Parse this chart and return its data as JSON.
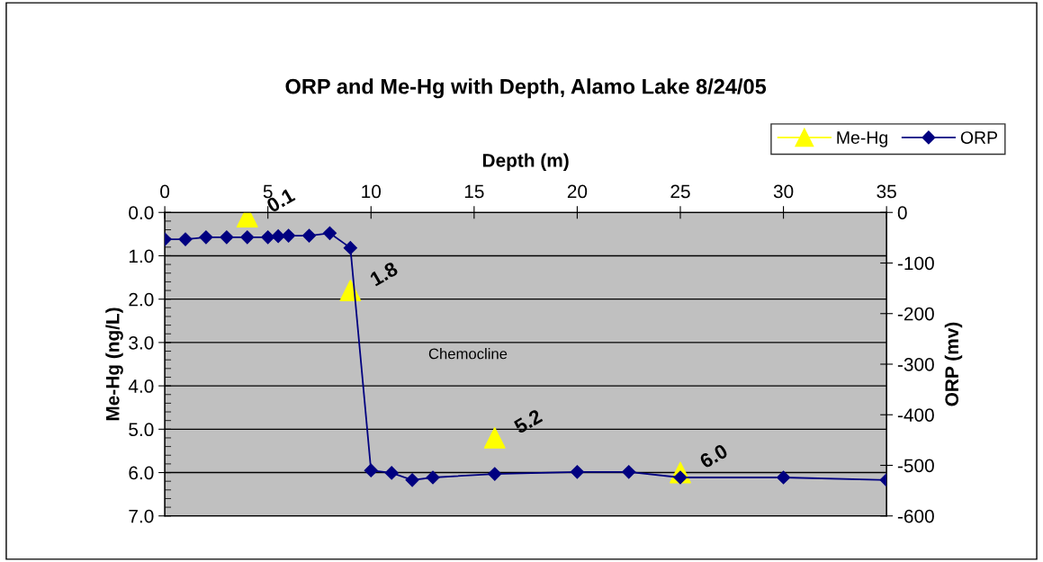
{
  "chart_data": {
    "type": "scatter",
    "title": "ORP and Me-Hg with Depth, Alamo Lake 8/24/05",
    "xlabel": "Depth (m)",
    "ylabel": "Me-Hg (ng/L)",
    "y2label": "ORP (mv)",
    "xlim": [
      0,
      35
    ],
    "xticks": [
      0,
      5,
      10,
      15,
      20,
      25,
      30,
      35
    ],
    "ylim": [
      7,
      0
    ],
    "yticks": [
      {
        "value": 0,
        "label": "0.0"
      },
      {
        "value": 1,
        "label": "1.0"
      },
      {
        "value": 2,
        "label": "2.0"
      },
      {
        "value": 3,
        "label": "3.0"
      },
      {
        "value": 4,
        "label": "4.0"
      },
      {
        "value": 5,
        "label": "5.0"
      },
      {
        "value": 6,
        "label": "6.0"
      },
      {
        "value": 7,
        "label": "7.0"
      }
    ],
    "y2lim": [
      -600,
      0
    ],
    "y2ticks": [
      -600,
      -500,
      -400,
      -300,
      -200,
      -100,
      0
    ],
    "grid": "y",
    "legend": "top right",
    "series": [
      {
        "name": "Me-Hg",
        "marker": "triangle",
        "color": "#ffff00",
        "x": [
          4,
          9,
          16,
          25
        ],
        "values": [
          0.1,
          1.8,
          5.2,
          6.0
        ],
        "value_labels": [
          "0.1",
          "1.8",
          "5.2",
          "6.0"
        ]
      },
      {
        "name": "ORP",
        "type": "line",
        "marker": "diamond",
        "color": "#000080",
        "axis": "y2",
        "x": [
          0,
          1,
          2,
          3,
          4,
          5,
          5.5,
          6,
          7,
          8,
          9,
          10,
          11,
          12,
          13,
          16,
          20,
          22.5,
          25,
          30,
          35
        ],
        "values": [
          -53,
          -53,
          -49,
          -49,
          -49,
          -49,
          -47,
          -46,
          -46,
          -41,
          -70,
          -510,
          -515,
          -529,
          -524,
          -517,
          -513,
          -513,
          -524,
          -524,
          -529
        ]
      }
    ],
    "annotations": [
      "Chemocline"
    ]
  }
}
